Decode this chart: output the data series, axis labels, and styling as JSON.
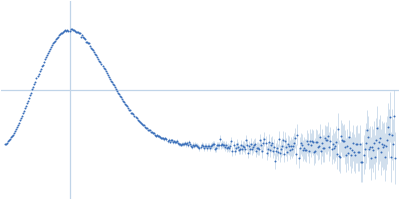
{
  "point_color": "#3a6fba",
  "error_color": "#b0c8e0",
  "background_color": "#ffffff",
  "grid_color": "#c0d4e8",
  "figsize": [
    4.0,
    2.0
  ],
  "dpi": 100,
  "seed": 42
}
